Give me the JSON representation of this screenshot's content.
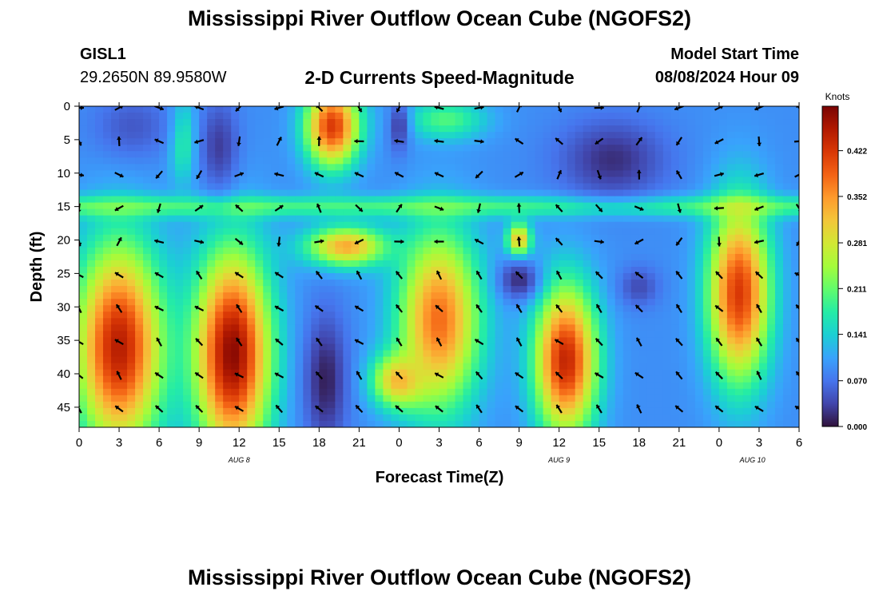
{
  "header": {
    "title": "Mississippi River Outflow Ocean Cube (NGOFS2)",
    "station_id": "GISL1",
    "coordinates": "29.2650N  89.9580W",
    "plot_title": "2-D Currents Speed-Magnitude",
    "model_start_label": "Model Start Time",
    "model_start_value": "08/08/2024 Hour 09"
  },
  "footer": {
    "title": "Mississippi River Outflow Ocean Cube (NGOFS2)"
  },
  "colors": {
    "colormap": [
      "#30123b",
      "#4145ab",
      "#4675ed",
      "#39a2fc",
      "#1bcfd4",
      "#24eca6",
      "#61fc6c",
      "#a4fc3b",
      "#d1e834",
      "#f3c63a",
      "#fe9b2d",
      "#f36315",
      "#d93806",
      "#b11901",
      "#7a0403"
    ]
  },
  "chart_data": {
    "type": "heatmap",
    "xlabel": "Forecast Time(Z)",
    "ylabel": "Depth (ft)",
    "x_tick_labels": [
      "0",
      "3",
      "6",
      "9",
      "12",
      "15",
      "18",
      "21",
      "0",
      "3",
      "6",
      "9",
      "12",
      "15",
      "18",
      "21",
      "0",
      "3",
      "6"
    ],
    "date_labels": [
      {
        "label": "AUG 8",
        "hour_index": 12
      },
      {
        "label": "AUG 9",
        "hour_index": 36
      },
      {
        "label": "AUG 10",
        "hour_index": 50.5
      }
    ],
    "y_ticks": [
      0,
      5,
      10,
      15,
      20,
      25,
      30,
      35,
      40,
      45
    ],
    "ylim": [
      0,
      48
    ],
    "xlim_hours": [
      0,
      54
    ],
    "colorbar": {
      "title": "Knots",
      "tick_labels": [
        "0.000",
        "0.070",
        "0.141",
        "0.211",
        "0.281",
        "0.352",
        "0.422"
      ],
      "tick_values": [
        0.0,
        0.07,
        0.141,
        0.211,
        0.281,
        0.352,
        0.422
      ],
      "range": [
        0,
        0.49
      ]
    },
    "vector_hours": [
      0,
      3,
      6,
      9,
      12,
      15,
      18,
      21,
      24,
      27,
      30,
      33,
      36,
      39,
      42,
      45,
      48,
      51,
      54
    ],
    "vector_depths": [
      0,
      5,
      10,
      15,
      20,
      25,
      30,
      35,
      40,
      45
    ],
    "speed_hotspots": [
      {
        "hour": 3,
        "depth": 36,
        "speed": 0.45,
        "radius_h": 3.2,
        "radius_d": 15
      },
      {
        "hour": 11.5,
        "depth": 37,
        "speed": 0.48,
        "radius_h": 2.8,
        "radius_d": 15
      },
      {
        "hour": 19,
        "depth": 3,
        "speed": 0.42,
        "radius_h": 2,
        "radius_d": 6
      },
      {
        "hour": 20,
        "depth": 21,
        "speed": 0.34,
        "radius_h": 3,
        "radius_d": 3
      },
      {
        "hour": 27,
        "depth": 32,
        "speed": 0.38,
        "radius_h": 3,
        "radius_d": 13
      },
      {
        "hour": 24,
        "depth": 41,
        "speed": 0.33,
        "radius_h": 2,
        "radius_d": 4
      },
      {
        "hour": 36.5,
        "depth": 38,
        "speed": 0.44,
        "radius_h": 2.3,
        "radius_d": 11
      },
      {
        "hour": 33,
        "depth": 20,
        "speed": 0.33,
        "radius_h": 0.9,
        "radius_d": 2.5
      },
      {
        "hour": 49.5,
        "depth": 28,
        "speed": 0.42,
        "radius_h": 2.3,
        "radius_d": 13
      },
      {
        "hour": 7.8,
        "depth": 5,
        "speed": 0.2,
        "radius_h": 1,
        "radius_d": 6
      },
      {
        "hour": 27.5,
        "depth": 2,
        "speed": 0.2,
        "radius_h": 3,
        "radius_d": 3
      }
    ],
    "speed_lows": [
      {
        "hour": 10.5,
        "depth": 6,
        "speed": 0.03,
        "radius_h": 1.5,
        "radius_d": 7
      },
      {
        "hour": 4,
        "depth": 3,
        "speed": 0.05,
        "radius_h": 3,
        "radius_d": 5
      },
      {
        "hour": 18.5,
        "depth": 41,
        "speed": 0.01,
        "radius_h": 1.6,
        "radius_d": 10
      },
      {
        "hour": 24,
        "depth": 3,
        "speed": 0.03,
        "radius_h": 0.8,
        "radius_d": 4
      },
      {
        "hour": 33,
        "depth": 26,
        "speed": 0.02,
        "radius_h": 1.5,
        "radius_d": 3
      },
      {
        "hour": 40,
        "depth": 8,
        "speed": 0.02,
        "radius_h": 4,
        "radius_d": 6
      },
      {
        "hour": 42,
        "depth": 27,
        "speed": 0.04,
        "radius_h": 1.5,
        "radius_d": 3
      }
    ],
    "background_speed": 0.09,
    "ocean_band_depth": 15,
    "ocean_band_speed": 0.19
  }
}
